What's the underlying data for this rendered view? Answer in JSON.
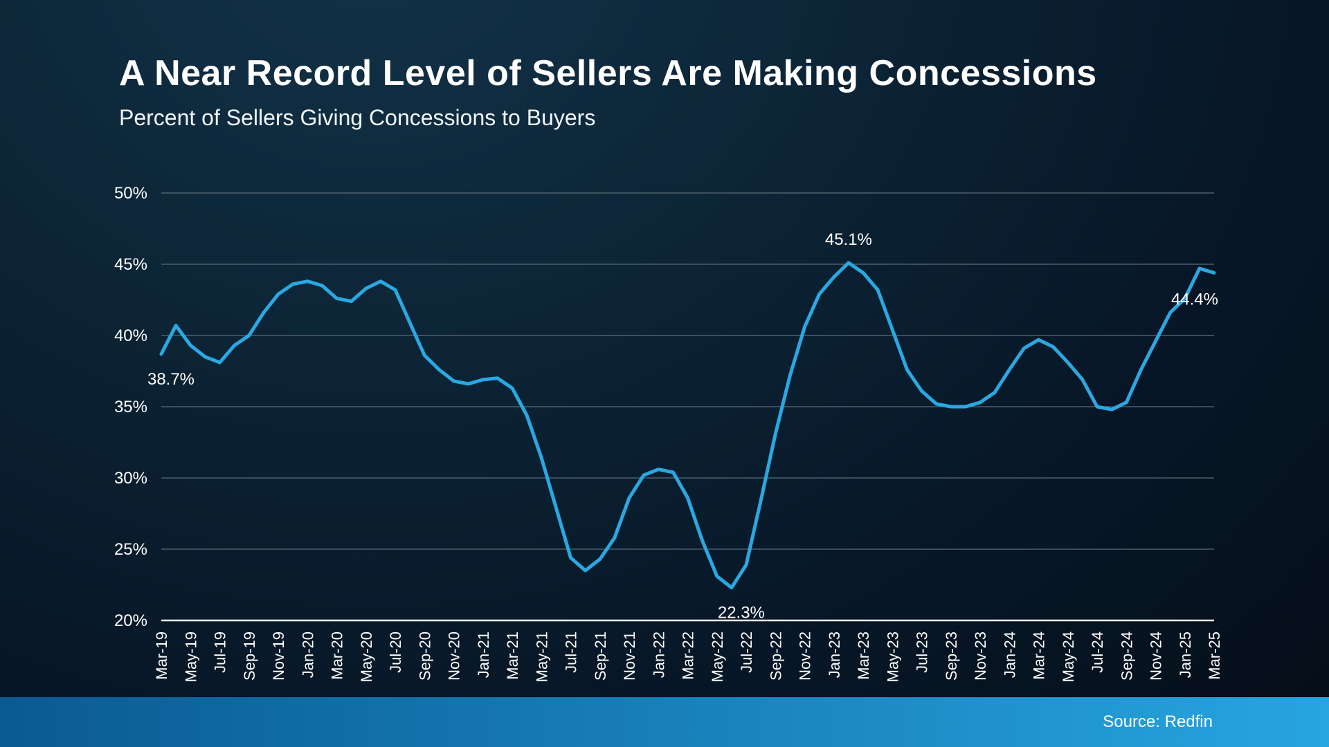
{
  "page": {
    "title": "A Near Record Level of Sellers Are Making Concessions",
    "subtitle": "Percent of Sellers Giving Concessions to Buyers",
    "source": "Source: Redfin"
  },
  "colors": {
    "line": "#2aa8e2",
    "grid": "#5c6b76",
    "axis": "#ffffff",
    "text": "#ffffff",
    "footer_left": "#0a5a92",
    "footer_right": "#27a5e0",
    "background": "#0a2233"
  },
  "chart_data": {
    "type": "line",
    "title": "A Near Record Level of Sellers Are Making Concessions",
    "subtitle": "Percent of Sellers Giving Concessions to Buyers",
    "x": [
      "Mar-19",
      "Apr-19",
      "May-19",
      "Jun-19",
      "Jul-19",
      "Aug-19",
      "Sep-19",
      "Oct-19",
      "Nov-19",
      "Dec-19",
      "Jan-20",
      "Feb-20",
      "Mar-20",
      "Apr-20",
      "May-20",
      "Jun-20",
      "Jul-20",
      "Aug-20",
      "Sep-20",
      "Oct-20",
      "Nov-20",
      "Dec-20",
      "Jan-21",
      "Feb-21",
      "Mar-21",
      "Apr-21",
      "May-21",
      "Jun-21",
      "Jul-21",
      "Aug-21",
      "Sep-21",
      "Oct-21",
      "Nov-21",
      "Dec-21",
      "Jan-22",
      "Feb-22",
      "Mar-22",
      "Apr-22",
      "May-22",
      "Jun-22",
      "Jul-22",
      "Aug-22",
      "Sep-22",
      "Oct-22",
      "Nov-22",
      "Dec-22",
      "Jan-23",
      "Feb-23",
      "Mar-23",
      "Apr-23",
      "May-23",
      "Jun-23",
      "Jul-23",
      "Aug-23",
      "Sep-23",
      "Oct-23",
      "Nov-23",
      "Dec-23",
      "Jan-24",
      "Feb-24",
      "Mar-24",
      "Apr-24",
      "May-24",
      "Jun-24",
      "Jul-24",
      "Aug-24",
      "Sep-24",
      "Oct-24",
      "Nov-24",
      "Dec-24",
      "Jan-25",
      "Feb-25",
      "Mar-25"
    ],
    "values": [
      38.7,
      40.7,
      39.3,
      38.5,
      38.1,
      39.3,
      40.0,
      41.6,
      42.9,
      43.6,
      43.8,
      43.5,
      42.6,
      42.4,
      43.3,
      43.8,
      43.2,
      40.9,
      38.6,
      37.6,
      36.8,
      36.6,
      36.9,
      37.0,
      36.3,
      34.4,
      31.4,
      27.9,
      24.4,
      23.5,
      24.3,
      25.8,
      28.6,
      30.2,
      30.6,
      30.4,
      28.6,
      25.6,
      23.1,
      22.3,
      23.9,
      28.4,
      33.1,
      37.2,
      40.6,
      42.9,
      44.1,
      45.1,
      44.4,
      43.2,
      40.4,
      37.6,
      36.1,
      35.2,
      35.0,
      35.0,
      35.3,
      36.0,
      37.6,
      39.1,
      39.7,
      39.2,
      38.1,
      36.9,
      35.0,
      34.8,
      35.3,
      37.6,
      39.6,
      41.6,
      42.6,
      44.7,
      44.4
    ],
    "ylim": [
      20,
      50
    ],
    "yticks": [
      20,
      25,
      30,
      35,
      40,
      45,
      50
    ],
    "ytick_suffix": "%",
    "xtick_every": 2,
    "grid": true,
    "legend": "none",
    "annotations": [
      {
        "label": "38.7%",
        "index": 0,
        "placement": "below"
      },
      {
        "label": "22.3%",
        "index": 39,
        "placement": "below"
      },
      {
        "label": "45.1%",
        "index": 47,
        "placement": "above"
      },
      {
        "label": "44.4%",
        "index": 72,
        "placement": "end-below"
      }
    ]
  }
}
